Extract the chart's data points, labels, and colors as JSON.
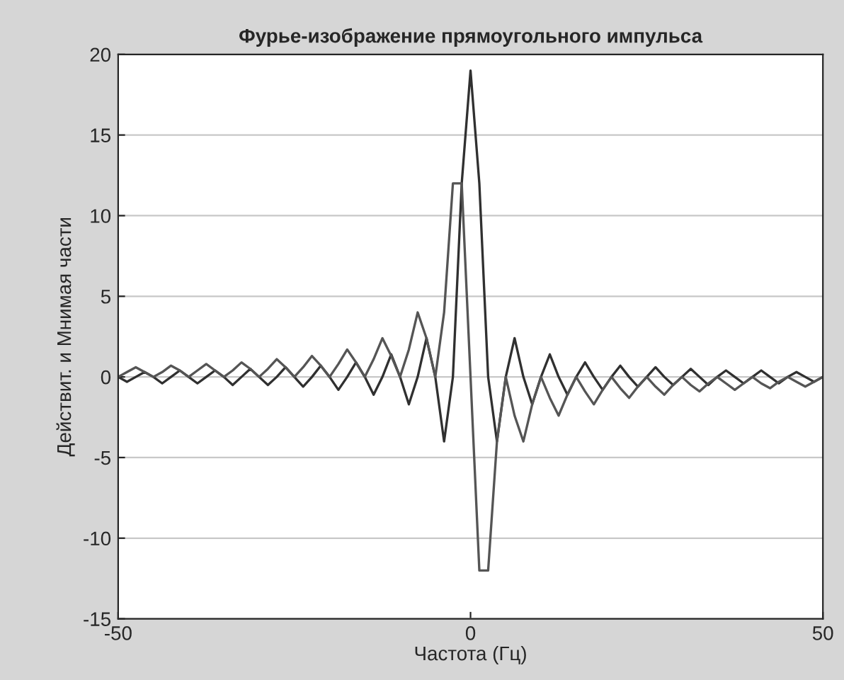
{
  "chart_data": {
    "type": "line",
    "title": "Фурье-изображение прямоугольного импульса",
    "xlabel": "Частота (Гц)",
    "ylabel": "Действит. и Мнимая части",
    "x": [
      -50,
      -48.75,
      -47.5,
      -46.25,
      -45,
      -43.75,
      -42.5,
      -41.25,
      -40,
      -38.75,
      -37.5,
      -36.25,
      -35,
      -33.75,
      -32.5,
      -31.25,
      -30,
      -28.75,
      -27.5,
      -26.25,
      -25,
      -23.75,
      -22.5,
      -21.25,
      -20,
      -18.75,
      -17.5,
      -16.25,
      -15,
      -13.75,
      -12.5,
      -11.25,
      -10,
      -8.75,
      -7.5,
      -6.25,
      -5,
      -3.75,
      -2.5,
      -1.25,
      0,
      1.25,
      2.5,
      3.75,
      5,
      6.25,
      7.5,
      8.75,
      10,
      11.25,
      12.5,
      13.75,
      15,
      16.25,
      17.5,
      18.75,
      20,
      21.25,
      22.5,
      23.75,
      25,
      26.25,
      27.5,
      28.75,
      30,
      31.25,
      32.5,
      33.75,
      35,
      36.25,
      37.5,
      38.75,
      40,
      41.25,
      42.5,
      43.75,
      45,
      46.25,
      47.5,
      48.75,
      50
    ],
    "series": [
      {
        "color": "#303030",
        "values": [
          0,
          -0.3,
          0,
          0.3,
          0,
          -0.4,
          0,
          0.4,
          0,
          -0.4,
          0,
          0.4,
          0,
          -0.5,
          0,
          0.5,
          0,
          -0.5,
          0,
          0.6,
          0,
          -0.6,
          0,
          0.7,
          0,
          -0.8,
          0,
          0.9,
          0,
          -1.1,
          0,
          1.4,
          0,
          -1.7,
          0,
          2.4,
          0,
          -4,
          0,
          12,
          19,
          12,
          0,
          -4,
          0,
          2.4,
          0,
          -1.7,
          0,
          1.4,
          0,
          -1.1,
          0,
          0.9,
          0,
          -0.8,
          0,
          0.7,
          0,
          -0.6,
          0,
          0.6,
          0,
          -0.5,
          0,
          0.5,
          0,
          -0.5,
          0,
          0.4,
          0,
          -0.4,
          0,
          0.4,
          0,
          -0.4,
          0,
          0.3,
          0,
          -0.3,
          0
        ]
      },
      {
        "color": "#555555",
        "values": [
          0,
          0.3,
          0.6,
          0.3,
          0,
          0.3,
          0.7,
          0.4,
          0,
          0.4,
          0.8,
          0.4,
          0,
          0.4,
          0.9,
          0.5,
          0,
          0.5,
          1.1,
          0.6,
          0,
          0.6,
          1.3,
          0.7,
          0,
          0.8,
          1.7,
          0.9,
          0,
          1.1,
          2.4,
          1.3,
          0,
          1.7,
          4,
          2.4,
          0,
          4,
          12,
          12,
          0,
          -12,
          -12,
          -4,
          0,
          -2.4,
          -4,
          -1.7,
          0,
          -1.3,
          -2.4,
          -1.1,
          0,
          -0.9,
          -1.7,
          -0.8,
          0,
          -0.7,
          -1.3,
          -0.6,
          0,
          -0.6,
          -1.1,
          -0.5,
          0,
          -0.5,
          -0.9,
          -0.4,
          0,
          -0.4,
          -0.8,
          -0.4,
          0,
          -0.4,
          -0.7,
          -0.3,
          0,
          -0.3,
          -0.6,
          -0.3,
          0
        ]
      }
    ],
    "xlim": [
      -50,
      50
    ],
    "xticks": [
      -50,
      0,
      50
    ],
    "ylim": [
      -15,
      20
    ],
    "yticks": [
      -15,
      -10,
      -5,
      0,
      5,
      10,
      15,
      20
    ],
    "grid": "y"
  }
}
